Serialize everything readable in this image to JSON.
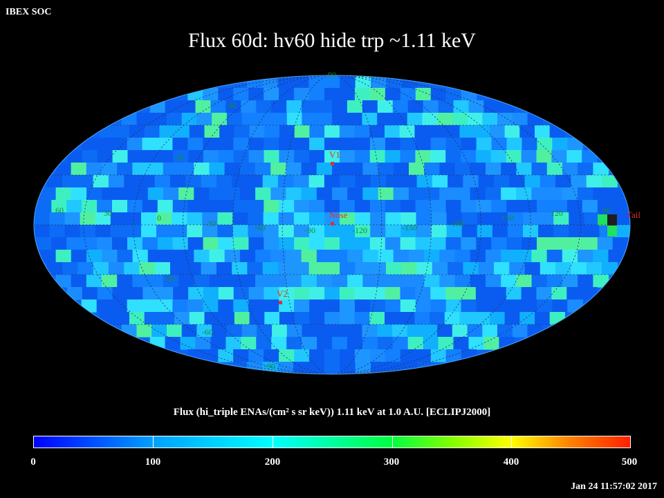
{
  "header": {
    "corner_label": "IBEX SOC",
    "title": "Flux   60d: hv60 hide trp ~1.11 keV"
  },
  "map": {
    "projection": "mollweide",
    "lat_labels": [
      "90",
      "60",
      "30",
      "30",
      "60",
      "0",
      "-30",
      "-60",
      "-90"
    ],
    "lon_labels": [
      "30",
      "0",
      "-30",
      "-60",
      "-90",
      "-120",
      "-150",
      "180",
      "150",
      "120",
      "90"
    ],
    "markers": [
      {
        "name": "V1",
        "color": "#e03030"
      },
      {
        "name": "Nose",
        "color": "#e03030"
      },
      {
        "name": "V2",
        "color": "#e03030"
      },
      {
        "name": "Tail",
        "color": "#e03030"
      }
    ]
  },
  "colorbar": {
    "title": "Flux (hi_triple ENAs/(cm² s sr keV))  1.11 keV at 1.0 A.U. [ECLIPJ2000]",
    "ticks": [
      "0",
      "100",
      "200",
      "300",
      "400",
      "500"
    ],
    "min": 0,
    "max": 500
  },
  "footer": {
    "timestamp": "Jan 24 11:57:02 2017"
  }
}
